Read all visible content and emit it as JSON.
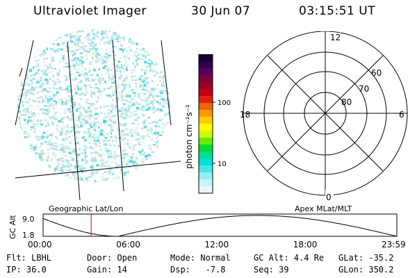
{
  "header": {
    "title": "Ultraviolet Imager",
    "date": "30 Jun 07",
    "time": "03:15:51 UT"
  },
  "colorbar": {
    "label": "photon cm⁻²s⁻¹",
    "ticks": [
      "100",
      "10"
    ],
    "colors": [
      "#140030",
      "#30004a",
      "#55005a",
      "#7a0040",
      "#9a0020",
      "#c00010",
      "#e02010",
      "#f06010",
      "#ff9900",
      "#ffcc00",
      "#ffff00",
      "#ccff00",
      "#66ee00",
      "#00dd30",
      "#00e090",
      "#00e0d0",
      "#40e8e8",
      "#90f0f0",
      "#c8f4f4",
      "#e8f8f8"
    ]
  },
  "polar": {
    "mlt_labels": {
      "top": "12",
      "bottom": "0",
      "left": "18",
      "right": "6"
    },
    "lat_labels": [
      "60",
      "70",
      "80"
    ]
  },
  "timeline": {
    "ylabel": "GC Alt",
    "yticks": [
      "9.0",
      "1.8"
    ],
    "left_label": "Geographic Lat/Lon",
    "right_label": "Apex MLat/MLT",
    "xticks": [
      "00:00",
      "06:00",
      "12:00",
      "18:00",
      "23:59"
    ],
    "marker_hour": 3.26,
    "curve_color": "#000000",
    "marker_color": "#cc0000"
  },
  "info": {
    "row1": [
      {
        "label": "Flt:",
        "value": "LBHL"
      },
      {
        "label": "Door:",
        "value": "Open"
      },
      {
        "label": "Mode:",
        "value": "Normal"
      },
      {
        "label": "GC Alt:",
        "value": "4.4 Re"
      },
      {
        "label": "GLat:",
        "value": "-35.2"
      }
    ],
    "row2": [
      {
        "label": "IP:",
        "value": "36.0"
      },
      {
        "label": "Gain:",
        "value": "14"
      },
      {
        "label": "Dsp:",
        "value": "  -7.8"
      },
      {
        "label": "Seq:",
        "value": "39"
      },
      {
        "label": "GLon:",
        "value": "350.2"
      }
    ]
  }
}
